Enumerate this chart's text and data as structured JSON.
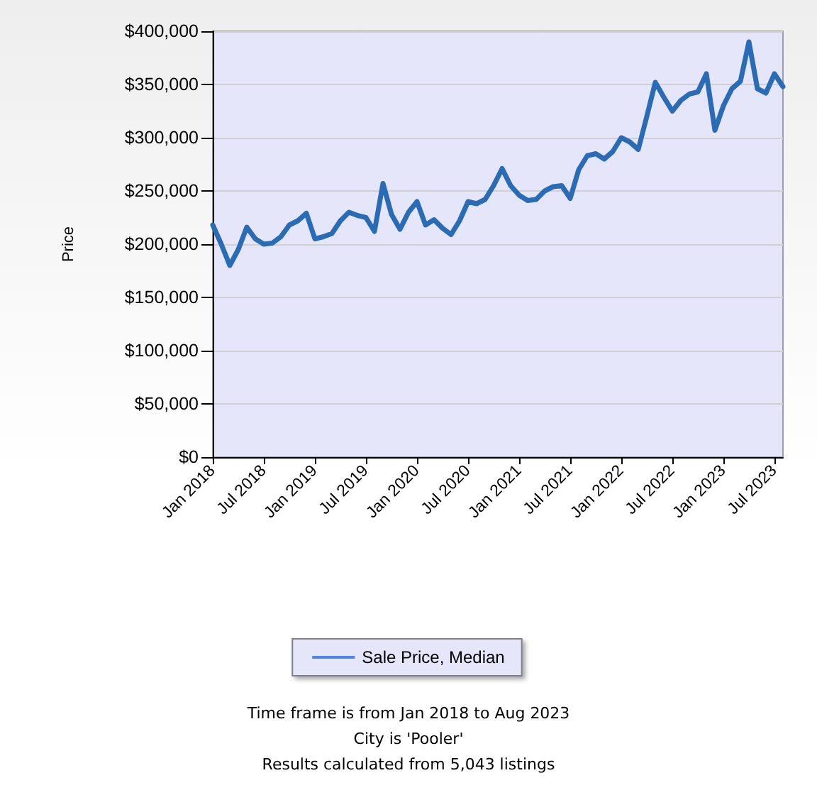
{
  "chart_data": {
    "type": "line",
    "ylabel": "Price",
    "categories": [
      "Jan 2018",
      null,
      null,
      null,
      null,
      null,
      "Jul 2018",
      null,
      null,
      null,
      null,
      null,
      "Jan 2019",
      null,
      null,
      null,
      null,
      null,
      "Jul 2019",
      null,
      null,
      null,
      null,
      null,
      "Jan 2020",
      null,
      null,
      null,
      null,
      null,
      "Jul 2020",
      null,
      null,
      null,
      null,
      null,
      "Jan 2021",
      null,
      null,
      null,
      null,
      null,
      "Jul 2021",
      null,
      null,
      null,
      null,
      null,
      "Jan 2022",
      null,
      null,
      null,
      null,
      null,
      "Jul 2022",
      null,
      null,
      null,
      null,
      null,
      "Jan 2023",
      null,
      null,
      null,
      null,
      null,
      "Jul 2023",
      null
    ],
    "series": [
      {
        "name": "Sale Price, Median",
        "color": "#2a6bb5",
        "values": [
          218000,
          200000,
          180000,
          195000,
          216000,
          205000,
          200000,
          201000,
          207000,
          218000,
          222000,
          229000,
          205000,
          207000,
          210000,
          222000,
          230000,
          227000,
          225000,
          212000,
          257000,
          228000,
          214000,
          230000,
          240000,
          218000,
          223000,
          215000,
          209000,
          222000,
          240000,
          238000,
          242000,
          255000,
          271000,
          255000,
          246000,
          241000,
          242000,
          250000,
          254000,
          255000,
          243000,
          270000,
          283000,
          285000,
          280000,
          287000,
          300000,
          296000,
          289000,
          320000,
          352000,
          338000,
          325000,
          335000,
          341000,
          343000,
          360000,
          307000,
          330000,
          346000,
          353000,
          390000,
          346000,
          342000,
          360000,
          348000
        ]
      }
    ],
    "ylim": [
      0,
      400000
    ],
    "yticks": [
      {
        "value": 0,
        "label": "$0"
      },
      {
        "value": 50000,
        "label": "$50,000"
      },
      {
        "value": 100000,
        "label": "$100,000"
      },
      {
        "value": 150000,
        "label": "$150,000"
      },
      {
        "value": 200000,
        "label": "$200,000"
      },
      {
        "value": 250000,
        "label": "$250,000"
      },
      {
        "value": 300000,
        "label": "$300,000"
      },
      {
        "value": 350000,
        "label": "$350,000"
      },
      {
        "value": 400000,
        "label": "$400,000"
      }
    ],
    "grid": "y",
    "legend": "bottom",
    "annotations": [
      "Time frame is from Jan 2018 to Aug 2023",
      "City is 'Pooler'",
      "Results calculated from 5,043 listings"
    ]
  }
}
